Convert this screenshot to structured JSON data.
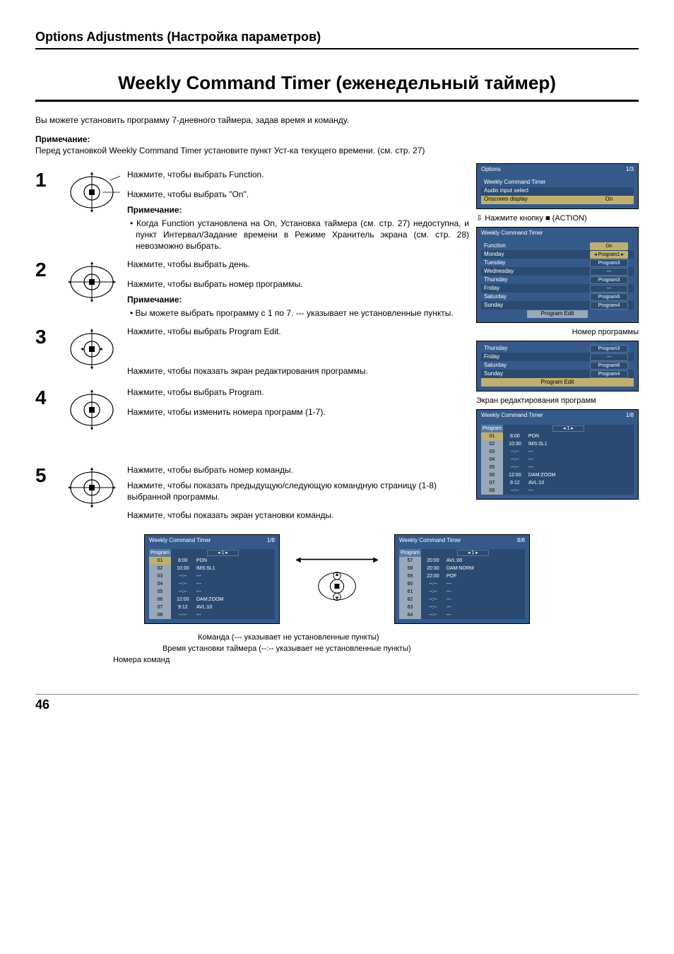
{
  "header": "Options Adjustments (Настройка параметров)",
  "title": "Weekly Command Timer (еженедельный таймер)",
  "intro": "Вы можете установить программу 7-дневного таймера, задав время и команду.",
  "note_label": "Примечание:",
  "pre_note": "Перед установкой Weekly Command Timer установите пункт Уст-ка текущего времени. (см. стр. 27)",
  "steps": {
    "s1": {
      "l1": "Нажмите, чтобы выбрать Function.",
      "l2": "Нажмите, чтобы выбрать \"On\".",
      "note": "Примечание:",
      "b1": "Когда Function установлена на On, Установка таймера (см. стр. 27) недоступна, и пункт Интервал/Задание времени в Режиме Хранитель экрана (см. стр. 28) невозможно выбрать."
    },
    "s2": {
      "l1": "Нажмите, чтобы выбрать день.",
      "l2": "Нажмите, чтобы выбрать номер программы.",
      "note": "Примечание:",
      "b1": "Вы можете выбрать программу с 1 по 7. --- указывает не установленные пункты."
    },
    "s3": {
      "l1": "Нажмите, чтобы выбрать Program Edit.",
      "l2": "Нажмите, чтобы показать экран редактирования программы."
    },
    "s4": {
      "l1": "Нажмите, чтобы выбрать Program.",
      "l2": "Нажмите, чтобы изменить номера программ (1-7)."
    },
    "s5": {
      "l1": "Нажмите, чтобы выбрать номер команды.",
      "l2": "Нажмите, чтобы показать предыдущую/следующую командную страницу (1-8) выбранной программы.",
      "l3": "Нажмите, чтобы показать экран установки команды."
    }
  },
  "action_note": "Нажмите кнопку ■ (ACTION)",
  "caption_prog_num": "Номер программы",
  "caption_edit_screen": "Экран редактирования программ",
  "osd_options": {
    "title": "Options",
    "page": "1/3",
    "r1": "Weekly Command Timer",
    "r2": "Audio input select",
    "r3": "Onscreen display",
    "r3v": "On"
  },
  "osd_wct": {
    "title": "Weekly Command Timer",
    "rows": [
      {
        "l": "Function",
        "v": "On",
        "sel": false,
        "vsel": true
      },
      {
        "l": "Monday",
        "v": "Program1",
        "sel": false,
        "pillsel": true
      },
      {
        "l": "Tuesday",
        "v": "Program3"
      },
      {
        "l": "Wednesday",
        "v": "---"
      },
      {
        "l": "Thursday",
        "v": "Program3"
      },
      {
        "l": "Friday",
        "v": "---"
      },
      {
        "l": "Saturday",
        "v": "Program6"
      },
      {
        "l": "Sunday",
        "v": "Program4"
      }
    ],
    "edit": "Program Edit"
  },
  "osd_wct2_rows": [
    {
      "l": "Thursday",
      "v": "Program3"
    },
    {
      "l": "Friday",
      "v": "---"
    },
    {
      "l": "Saturday",
      "v": "Program6"
    },
    {
      "l": "Sunday",
      "v": "Program4"
    }
  ],
  "osd_wct2_edit": "Program Edit",
  "osd_prog": {
    "title": "Weekly Command Timer",
    "page": "1/8",
    "header": "Program",
    "hval": "1",
    "rows": [
      {
        "n": "01",
        "t": "8:00",
        "c": "PON",
        "sel": true
      },
      {
        "n": "02",
        "t": "10:30",
        "c": "IMS:SL1"
      },
      {
        "n": "03",
        "t": "--:--",
        "c": "---"
      },
      {
        "n": "04",
        "t": "--:--",
        "c": "---"
      },
      {
        "n": "05",
        "t": "--:--",
        "c": "---"
      },
      {
        "n": "06",
        "t": "12:00",
        "c": "DAM:ZOOM"
      },
      {
        "n": "07",
        "t": "9:12",
        "c": "AVL:10"
      },
      {
        "n": "08",
        "t": "--:--",
        "c": "---"
      }
    ]
  },
  "osd_bottom_left": {
    "title": "Weekly Command Timer",
    "page": "1/8",
    "header": "Program",
    "hval": "1",
    "rows": [
      {
        "n": "01",
        "t": "8:00",
        "c": "PON",
        "sel": true
      },
      {
        "n": "02",
        "t": "10:30",
        "c": "IMS:SL1"
      },
      {
        "n": "03",
        "t": "--:--",
        "c": "---"
      },
      {
        "n": "04",
        "t": "--:--",
        "c": "---"
      },
      {
        "n": "05",
        "t": "--:--",
        "c": "---"
      },
      {
        "n": "06",
        "t": "12:00",
        "c": "DAM:ZOOM"
      },
      {
        "n": "07",
        "t": "9:12",
        "c": "AVL:10"
      },
      {
        "n": "08",
        "t": "--:--",
        "c": "---"
      }
    ]
  },
  "osd_bottom_right": {
    "title": "Weekly Command Timer",
    "page": "8/8",
    "header": "Program",
    "hval": "1",
    "rows": [
      {
        "n": "57",
        "t": "20:00",
        "c": "AVL:00"
      },
      {
        "n": "58",
        "t": "20:30",
        "c": "DAM:NORM"
      },
      {
        "n": "59",
        "t": "22:00",
        "c": "POF"
      },
      {
        "n": "60",
        "t": "--:--",
        "c": "---"
      },
      {
        "n": "61",
        "t": "--:--",
        "c": "---"
      },
      {
        "n": "62",
        "t": "--:--",
        "c": "---"
      },
      {
        "n": "63",
        "t": "--:--",
        "c": "---"
      },
      {
        "n": "64",
        "t": "--:--",
        "c": "---"
      }
    ]
  },
  "bottom_labels": {
    "l1": "Команда (--- указывает не установленные пункты)",
    "l2": "Время установки таймера (--:-- указывает не установленные пункты)",
    "l3": "Номера команд"
  },
  "page_number": "46"
}
